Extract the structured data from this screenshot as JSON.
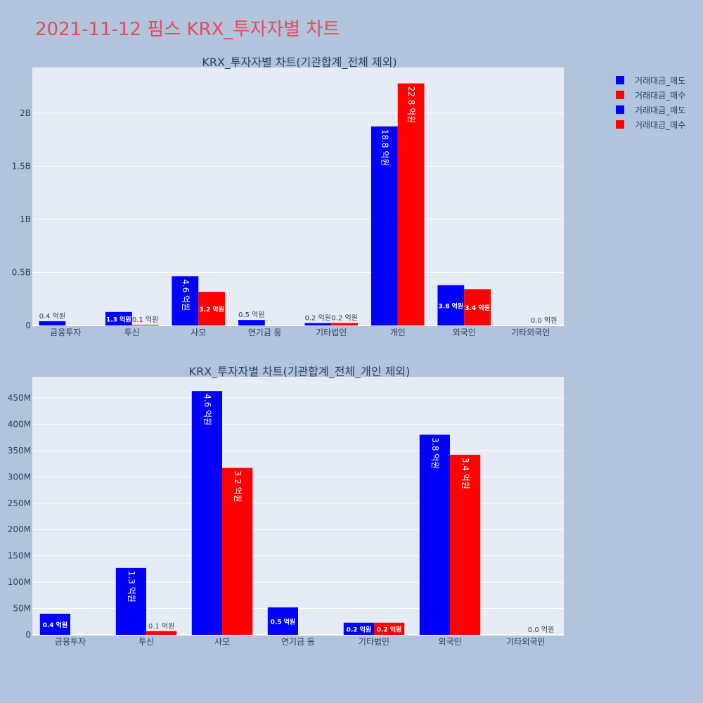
{
  "title": "2021-11-12 핌스 KRX_투자자별 차트",
  "colors": {
    "sell": "#0000ff",
    "buy": "#ff0000",
    "plot_bg": "#e5ecf6",
    "page_bg": "#b0c4de",
    "title": "#e8495a",
    "text": "#2a3f5f"
  },
  "legend": [
    {
      "label": "거래대금_매도",
      "color": "#0000ff"
    },
    {
      "label": "거래대금_매수",
      "color": "#ff0000"
    },
    {
      "label": "거래대금_매도",
      "color": "#0000ff"
    },
    {
      "label": "거래대금_매수",
      "color": "#ff0000"
    }
  ],
  "chart_data": [
    {
      "type": "bar",
      "title": "KRX_투자자별 차트(기관합계_전체 제외)",
      "categories": [
        "금융투자",
        "투신",
        "사모",
        "연기금 등",
        "기타법인",
        "개인",
        "외국인",
        "기타외국인"
      ],
      "ylim": [
        0,
        2430000000
      ],
      "yticks": [
        0,
        500000000,
        1000000000,
        1500000000,
        2000000000
      ],
      "ytick_labels": [
        "0",
        "0.5B",
        "1B",
        "1.5B",
        "2B"
      ],
      "series": [
        {
          "name": "거래대금_매도",
          "values": [
            40000000,
            127000000,
            463000000,
            52000000,
            23000000,
            1875000000,
            380000000,
            0
          ],
          "labels": [
            "0.4 억원",
            "1.3 억원",
            "4.6 억원",
            "0.5 억원",
            "0.2 억원",
            "18.8 억원",
            "3.8 억원",
            ""
          ]
        },
        {
          "name": "거래대금_매수",
          "values": [
            0,
            7000000,
            317000000,
            0,
            23000000,
            2280000000,
            342000000,
            0
          ],
          "labels": [
            "",
            "0.1 억원",
            "3.2 억원",
            "",
            "0.2 억원",
            "22.8 억원",
            "3.4 억원",
            "0.0 억원"
          ]
        }
      ]
    },
    {
      "type": "bar",
      "title": "KRX_투자자별 차트(기관합계_전체_개인 제외)",
      "categories": [
        "금융투자",
        "투신",
        "사모",
        "연기금 등",
        "기타법인",
        "외국인",
        "기타외국인"
      ],
      "ylim": [
        0,
        490000000
      ],
      "yticks": [
        0,
        50000000,
        100000000,
        150000000,
        200000000,
        250000000,
        300000000,
        350000000,
        400000000,
        450000000
      ],
      "ytick_labels": [
        "0",
        "50M",
        "100M",
        "150M",
        "200M",
        "250M",
        "300M",
        "350M",
        "400M",
        "450M"
      ],
      "series": [
        {
          "name": "거래대금_매도",
          "values": [
            40000000,
            127000000,
            463000000,
            52000000,
            23000000,
            380000000,
            0
          ],
          "labels": [
            "0.4 억원",
            "1.3 억원",
            "4.6 억원",
            "0.5 억원",
            "0.2 억원",
            "3.8 억원",
            ""
          ]
        },
        {
          "name": "거래대금_매수",
          "values": [
            0,
            7000000,
            317000000,
            0,
            23000000,
            342000000,
            0
          ],
          "labels": [
            "",
            "0.1 억원",
            "3.2 억원",
            "",
            "0.2 억원",
            "3.4 억원",
            "0.0 억원"
          ]
        }
      ]
    }
  ]
}
